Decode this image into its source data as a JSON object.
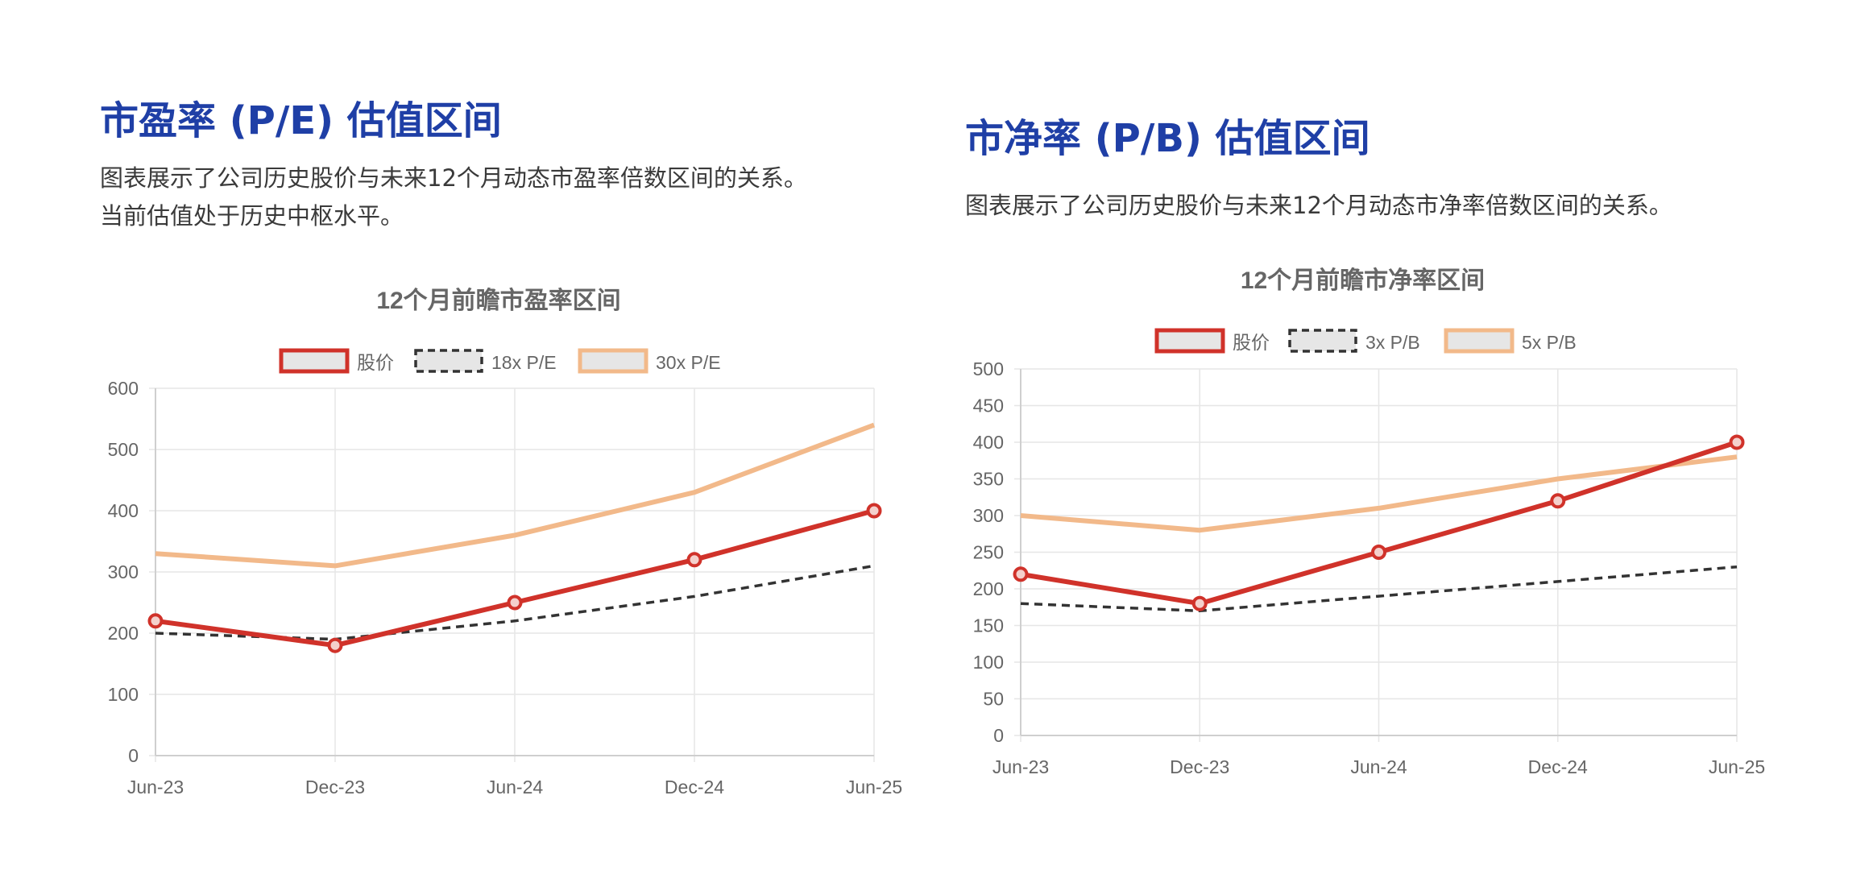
{
  "left": {
    "heading": "市盈率 (P/E) 估值区间",
    "desc_lines": [
      "图表展示了公司历史股价与未来12个月动态市盈率倍数区间的关系。",
      "当前估值处于历史中枢水平。"
    ]
  },
  "right": {
    "heading": "市净率 (P/B) 估值区间",
    "desc_lines": [
      "图表展示了公司历史股价与未来12个月动态市净率倍数区间的关系。"
    ]
  },
  "colors": {
    "price": "#d0322a",
    "band_low": "#333333",
    "band_high": "#f2b98a",
    "grid": "#e6e6e6",
    "axis_text": "#666666",
    "title": "#666666"
  },
  "chart_data": [
    {
      "type": "line",
      "title": "12个月前瞻市盈率区间",
      "xlabel": "",
      "ylabel": "",
      "x": [
        "Jun-23",
        "Dec-23",
        "Jun-24",
        "Dec-24",
        "Jun-25"
      ],
      "ylim": [
        0,
        600
      ],
      "yticks": [
        0,
        100,
        200,
        300,
        400,
        500,
        600
      ],
      "grid": true,
      "legend_position": "top-center",
      "series": [
        {
          "name": "股价",
          "values": [
            220,
            180,
            250,
            320,
            400
          ],
          "style": "solid-markers",
          "color": "#d0322a"
        },
        {
          "name": "18x P/E",
          "values": [
            200,
            190,
            220,
            260,
            310
          ],
          "style": "dashed",
          "color": "#333333"
        },
        {
          "name": "30x P/E",
          "values": [
            330,
            310,
            360,
            430,
            540
          ],
          "style": "solid",
          "color": "#f2b98a"
        }
      ]
    },
    {
      "type": "line",
      "title": "12个月前瞻市净率区间",
      "xlabel": "",
      "ylabel": "",
      "x": [
        "Jun-23",
        "Dec-23",
        "Jun-24",
        "Dec-24",
        "Jun-25"
      ],
      "ylim": [
        0,
        500
      ],
      "yticks": [
        0,
        50,
        100,
        150,
        200,
        250,
        300,
        350,
        400,
        450,
        500
      ],
      "grid": true,
      "legend_position": "top-center",
      "series": [
        {
          "name": "股价",
          "values": [
            220,
            180,
            250,
            320,
            400
          ],
          "style": "solid-markers",
          "color": "#d0322a"
        },
        {
          "name": "3x P/B",
          "values": [
            180,
            170,
            190,
            210,
            230
          ],
          "style": "dashed",
          "color": "#333333"
        },
        {
          "name": "5x P/B",
          "values": [
            300,
            280,
            310,
            350,
            380
          ],
          "style": "solid",
          "color": "#f2b98a"
        }
      ]
    }
  ]
}
